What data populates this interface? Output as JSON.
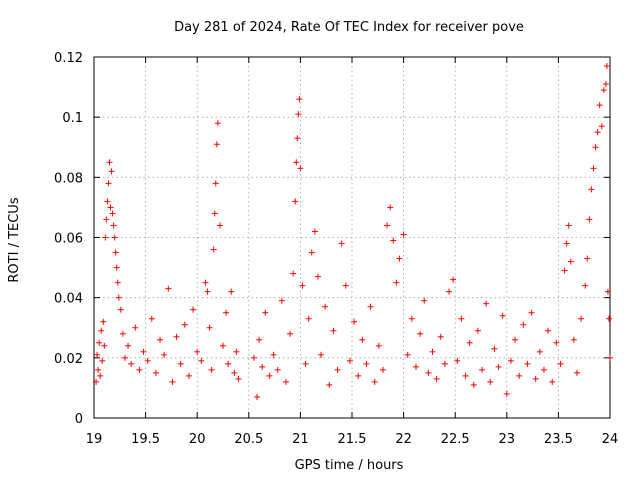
{
  "chart_data": {
    "type": "scatter",
    "title": "Day 281 of 2024, Rate Of TEC Index for receiver pove",
    "xlabel": "GPS time / hours",
    "ylabel": "ROTI / TECUs",
    "xlim": [
      19,
      24
    ],
    "ylim": [
      0,
      0.12
    ],
    "xticks": [
      19,
      19.5,
      20,
      20.5,
      21,
      21.5,
      22,
      22.5,
      23,
      23.5,
      24
    ],
    "xtick_labels": [
      "19",
      "19.5",
      "20",
      "20.5",
      "21",
      "21.5",
      "22",
      "22.5",
      "23",
      "23.5",
      "24"
    ],
    "yticks": [
      0,
      0.02,
      0.04,
      0.06,
      0.08,
      0.1,
      0.12
    ],
    "ytick_labels": [
      "0",
      "0.02",
      "0.04",
      "0.06",
      "0.08",
      "0.1",
      "0.12"
    ],
    "grid": true,
    "marker": "+",
    "series": [
      {
        "name": "ROTI",
        "color": "#ff0000",
        "points": [
          [
            19.02,
            0.012
          ],
          [
            19.03,
            0.021
          ],
          [
            19.04,
            0.016
          ],
          [
            19.05,
            0.025
          ],
          [
            19.06,
            0.014
          ],
          [
            19.07,
            0.029
          ],
          [
            19.08,
            0.019
          ],
          [
            19.09,
            0.032
          ],
          [
            19.1,
            0.024
          ],
          [
            19.11,
            0.06
          ],
          [
            19.12,
            0.066
          ],
          [
            19.13,
            0.072
          ],
          [
            19.14,
            0.078
          ],
          [
            19.15,
            0.085
          ],
          [
            19.16,
            0.07
          ],
          [
            19.17,
            0.082
          ],
          [
            19.18,
            0.068
          ],
          [
            19.19,
            0.064
          ],
          [
            19.2,
            0.06
          ],
          [
            19.21,
            0.055
          ],
          [
            19.22,
            0.05
          ],
          [
            19.23,
            0.045
          ],
          [
            19.24,
            0.04
          ],
          [
            19.26,
            0.036
          ],
          [
            19.28,
            0.028
          ],
          [
            19.3,
            0.02
          ],
          [
            19.33,
            0.024
          ],
          [
            19.36,
            0.018
          ],
          [
            19.4,
            0.03
          ],
          [
            19.44,
            0.016
          ],
          [
            19.48,
            0.022
          ],
          [
            19.52,
            0.019
          ],
          [
            19.56,
            0.033
          ],
          [
            19.6,
            0.015
          ],
          [
            19.64,
            0.026
          ],
          [
            19.68,
            0.021
          ],
          [
            19.72,
            0.043
          ],
          [
            19.76,
            0.012
          ],
          [
            19.8,
            0.027
          ],
          [
            19.84,
            0.018
          ],
          [
            19.88,
            0.031
          ],
          [
            19.92,
            0.014
          ],
          [
            19.96,
            0.036
          ],
          [
            20.0,
            0.022
          ],
          [
            20.04,
            0.019
          ],
          [
            20.08,
            0.045
          ],
          [
            20.1,
            0.042
          ],
          [
            20.12,
            0.03
          ],
          [
            20.14,
            0.016
          ],
          [
            20.16,
            0.056
          ],
          [
            20.17,
            0.068
          ],
          [
            20.18,
            0.078
          ],
          [
            20.19,
            0.091
          ],
          [
            20.2,
            0.098
          ],
          [
            20.22,
            0.064
          ],
          [
            20.25,
            0.024
          ],
          [
            20.28,
            0.035
          ],
          [
            20.3,
            0.018
          ],
          [
            20.33,
            0.042
          ],
          [
            20.36,
            0.015
          ],
          [
            20.38,
            0.022
          ],
          [
            20.4,
            0.013
          ],
          [
            20.55,
            0.02
          ],
          [
            20.58,
            0.007
          ],
          [
            20.6,
            0.026
          ],
          [
            20.63,
            0.017
          ],
          [
            20.66,
            0.035
          ],
          [
            20.7,
            0.014
          ],
          [
            20.74,
            0.021
          ],
          [
            20.78,
            0.016
          ],
          [
            20.82,
            0.039
          ],
          [
            20.86,
            0.012
          ],
          [
            20.9,
            0.028
          ],
          [
            20.93,
            0.048
          ],
          [
            20.95,
            0.072
          ],
          [
            20.96,
            0.085
          ],
          [
            20.97,
            0.093
          ],
          [
            20.98,
            0.101
          ],
          [
            20.99,
            0.106
          ],
          [
            21.0,
            0.083
          ],
          [
            21.02,
            0.044
          ],
          [
            21.05,
            0.018
          ],
          [
            21.08,
            0.033
          ],
          [
            21.11,
            0.055
          ],
          [
            21.14,
            0.062
          ],
          [
            21.17,
            0.047
          ],
          [
            21.2,
            0.021
          ],
          [
            21.24,
            0.037
          ],
          [
            21.28,
            0.011
          ],
          [
            21.32,
            0.029
          ],
          [
            21.36,
            0.016
          ],
          [
            21.4,
            0.058
          ],
          [
            21.44,
            0.044
          ],
          [
            21.48,
            0.019
          ],
          [
            21.52,
            0.032
          ],
          [
            21.56,
            0.014
          ],
          [
            21.6,
            0.026
          ],
          [
            21.64,
            0.018
          ],
          [
            21.68,
            0.037
          ],
          [
            21.72,
            0.012
          ],
          [
            21.76,
            0.024
          ],
          [
            21.8,
            0.016
          ],
          [
            21.84,
            0.064
          ],
          [
            21.87,
            0.07
          ],
          [
            21.9,
            0.059
          ],
          [
            21.93,
            0.045
          ],
          [
            21.96,
            0.053
          ],
          [
            22.0,
            0.061
          ],
          [
            22.04,
            0.021
          ],
          [
            22.08,
            0.033
          ],
          [
            22.12,
            0.017
          ],
          [
            22.16,
            0.028
          ],
          [
            22.2,
            0.039
          ],
          [
            22.24,
            0.015
          ],
          [
            22.28,
            0.022
          ],
          [
            22.32,
            0.013
          ],
          [
            22.36,
            0.027
          ],
          [
            22.4,
            0.018
          ],
          [
            22.44,
            0.042
          ],
          [
            22.48,
            0.046
          ],
          [
            22.52,
            0.019
          ],
          [
            22.56,
            0.033
          ],
          [
            22.6,
            0.014
          ],
          [
            22.64,
            0.025
          ],
          [
            22.68,
            0.011
          ],
          [
            22.72,
            0.029
          ],
          [
            22.76,
            0.016
          ],
          [
            22.8,
            0.038
          ],
          [
            22.84,
            0.012
          ],
          [
            22.88,
            0.023
          ],
          [
            22.92,
            0.017
          ],
          [
            22.96,
            0.034
          ],
          [
            23.0,
            0.008
          ],
          [
            23.04,
            0.019
          ],
          [
            23.08,
            0.026
          ],
          [
            23.12,
            0.014
          ],
          [
            23.16,
            0.031
          ],
          [
            23.2,
            0.018
          ],
          [
            23.24,
            0.035
          ],
          [
            23.28,
            0.013
          ],
          [
            23.32,
            0.022
          ],
          [
            23.36,
            0.016
          ],
          [
            23.4,
            0.029
          ],
          [
            23.44,
            0.012
          ],
          [
            23.48,
            0.025
          ],
          [
            23.52,
            0.018
          ],
          [
            23.56,
            0.049
          ],
          [
            23.58,
            0.058
          ],
          [
            23.6,
            0.064
          ],
          [
            23.62,
            0.052
          ],
          [
            23.65,
            0.026
          ],
          [
            23.68,
            0.015
          ],
          [
            23.72,
            0.033
          ],
          [
            23.76,
            0.044
          ],
          [
            23.78,
            0.053
          ],
          [
            23.8,
            0.066
          ],
          [
            23.82,
            0.076
          ],
          [
            23.84,
            0.083
          ],
          [
            23.86,
            0.09
          ],
          [
            23.88,
            0.095
          ],
          [
            23.9,
            0.104
          ],
          [
            23.92,
            0.097
          ],
          [
            23.94,
            0.109
          ],
          [
            23.96,
            0.111
          ],
          [
            23.97,
            0.117
          ],
          [
            23.98,
            0.042
          ],
          [
            23.99,
            0.033
          ],
          [
            24.0,
            0.02
          ]
        ]
      }
    ]
  }
}
